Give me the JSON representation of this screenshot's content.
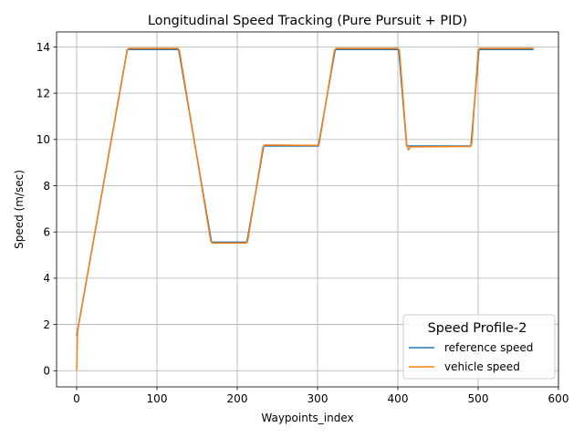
{
  "chart_data": {
    "type": "line",
    "title": "Longitudinal Speed Tracking (Pure Pursuit + PID)",
    "xlabel": "Waypoints_index",
    "ylabel": "Speed (m/sec)",
    "xlim": [
      -25,
      600
    ],
    "ylim": [
      -0.7,
      14.65
    ],
    "xticks": [
      0,
      100,
      200,
      300,
      400,
      500,
      600
    ],
    "yticks": [
      0,
      2,
      4,
      6,
      8,
      10,
      12,
      14
    ],
    "grid": true,
    "legend": {
      "title": "Speed Profile-2",
      "placement": "bottom-right"
    },
    "series": [
      {
        "name": "reference speed",
        "color": "#1f77b4",
        "x": [
          0,
          63,
          127,
          168,
          212,
          233,
          301,
          322,
          401,
          411,
          491,
          501,
          569
        ],
        "y": [
          1.5,
          13.89,
          13.89,
          5.56,
          5.56,
          9.72,
          9.72,
          13.89,
          13.89,
          9.72,
          9.72,
          13.89,
          13.89
        ]
      },
      {
        "name": "vehicle speed",
        "color": "#ff7f0e",
        "x": [
          0,
          0.6,
          1.2,
          63,
          65,
          126,
          128,
          167,
          169,
          211,
          213,
          232,
          234,
          300,
          302,
          321,
          323,
          400,
          402,
          411,
          413,
          416,
          490,
          492,
          500,
          502,
          569
        ],
        "y": [
          0,
          1.0,
          1.75,
          13.85,
          13.94,
          13.94,
          13.85,
          5.6,
          5.52,
          5.52,
          5.6,
          9.68,
          9.76,
          9.74,
          9.8,
          13.85,
          13.94,
          13.94,
          13.85,
          9.8,
          9.55,
          9.68,
          9.7,
          9.8,
          13.85,
          13.94,
          13.94
        ]
      }
    ]
  }
}
